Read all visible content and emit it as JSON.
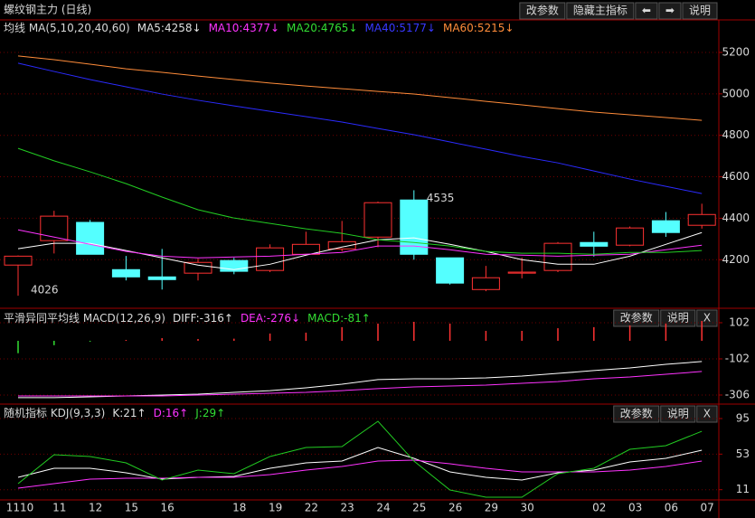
{
  "chart_data": [
    {
      "type": "candlestick",
      "title": "螺纹钢主力 (日线)",
      "indicator_title": "均线 MA(5,10,20,40,60)",
      "indicators": [
        {
          "label": "MA5:4258↓",
          "color": "#e0e0e0"
        },
        {
          "label": "MA10:4377↓",
          "color": "#ff33ff"
        },
        {
          "label": "MA20:4765↓",
          "color": "#33dd33"
        },
        {
          "label": "MA40:5177↓",
          "color": "#3838ff"
        },
        {
          "label": "MA60:5215↓",
          "color": "#ff8c3a"
        }
      ],
      "buttons": [
        "改参数",
        "隐藏主指标",
        "⬅",
        "➡",
        "说明"
      ],
      "up_color": "#ff3232",
      "down_color": "#54ffff",
      "open": [
        4174,
        4292,
        4380,
        4152,
        4117,
        4135,
        4196,
        4148,
        4226,
        4252,
        4309,
        4488,
        4209,
        4056,
        4135,
        4148,
        4283,
        4270,
        4388,
        4366
      ],
      "high": [
        4220,
        4436,
        4392,
        4218,
        4252,
        4205,
        4209,
        4274,
        4335,
        4387,
        4480,
        4535,
        4210,
        4170,
        4210,
        4285,
        4335,
        4360,
        4430,
        4470
      ],
      "low": [
        4026,
        4230,
        4226,
        4100,
        4056,
        4100,
        4130,
        4140,
        4220,
        4240,
        4260,
        4200,
        4080,
        4048,
        4110,
        4140,
        4215,
        4265,
        4310,
        4350
      ],
      "close": [
        4217,
        4410,
        4226,
        4117,
        4104,
        4187,
        4144,
        4257,
        4274,
        4287,
        4475,
        4226,
        4087,
        4113,
        4140,
        4279,
        4265,
        4353,
        4331,
        4418
      ],
      "series": [
        {
          "color": "#ffffff",
          "values": [
            4253,
            4279,
            4279,
            4244,
            4209,
            4174,
            4152,
            4178,
            4222,
            4261,
            4296,
            4305,
            4274,
            4240,
            4200,
            4178,
            4178,
            4217,
            4274,
            4331
          ]
        },
        {
          "color": "#ff33ff",
          "values": [
            4344,
            4309,
            4274,
            4240,
            4217,
            4209,
            4213,
            4217,
            4226,
            4235,
            4266,
            4266,
            4248,
            4226,
            4222,
            4217,
            4222,
            4226,
            4248,
            4270
          ]
        },
        {
          "color": "#22cc22",
          "values": [
            4737,
            4677,
            4624,
            4567,
            4502,
            4441,
            4401,
            4375,
            4349,
            4327,
            4296,
            4283,
            4266,
            4240,
            4231,
            4231,
            4226,
            4235,
            4235,
            4244
          ]
        },
        {
          "color": "#2b2bff",
          "values": [
            5148,
            5108,
            5069,
            5034,
            4999,
            4969,
            4942,
            4916,
            4890,
            4864,
            4833,
            4803,
            4768,
            4733,
            4698,
            4667,
            4628,
            4589,
            4554,
            4519
          ]
        },
        {
          "color": "#ff8c3a",
          "values": [
            5183,
            5165,
            5143,
            5121,
            5104,
            5086,
            5069,
            5052,
            5038,
            5025,
            5012,
            4999,
            4982,
            4964,
            4947,
            4929,
            4912,
            4899,
            4886,
            4872
          ]
        }
      ],
      "annotations": [
        {
          "value": 4535,
          "label": "4535"
        },
        {
          "value": 4026,
          "label": "4026"
        }
      ],
      "ylim": [
        3970,
        5322
      ],
      "yticks": [
        4200,
        4400,
        4600,
        4800,
        5000,
        5200
      ]
    },
    {
      "type": "macd",
      "title": "平滑异同平均线 MACD(12,26,9)",
      "indicators": [
        {
          "label": "DIFF:-316↑",
          "color": "#e0e0e0"
        },
        {
          "label": "DEA:-276↓",
          "color": "#ff33ff"
        },
        {
          "label": "MACD:-81↑",
          "color": "#33dd33"
        }
      ],
      "buttons": [
        "改参数",
        "说明",
        "X"
      ],
      "up_color": "#ff3232",
      "down_color": "#33dd33",
      "bars": [
        -70,
        -25,
        -5,
        5,
        15,
        10,
        12,
        41,
        46,
        77,
        97,
        107,
        97,
        56,
        56,
        71,
        77,
        87,
        97,
        112
      ],
      "series": [
        {
          "color": "#ffffff",
          "values": [
            -321,
            -321,
            -316,
            -311,
            -306,
            -301,
            -291,
            -281,
            -265,
            -245,
            -219,
            -214,
            -214,
            -209,
            -199,
            -184,
            -168,
            -153,
            -133,
            -117
          ]
        },
        {
          "color": "#ff33ff",
          "values": [
            -311,
            -311,
            -311,
            -311,
            -311,
            -306,
            -301,
            -296,
            -291,
            -281,
            -270,
            -260,
            -255,
            -250,
            -240,
            -230,
            -214,
            -204,
            -189,
            -173
          ]
        }
      ],
      "ylim": [
        -352,
        158
      ],
      "yticks": [
        102,
        -102,
        -306
      ]
    },
    {
      "type": "line",
      "title": "随机指标 KDJ(9,3,3)",
      "indicators": [
        {
          "label": "K:21↑",
          "color": "#e0e0e0"
        },
        {
          "label": "D:16↑",
          "color": "#ff33ff"
        },
        {
          "label": "J:29↑",
          "color": "#33dd33"
        }
      ],
      "buttons": [
        "改参数",
        "说明",
        "X"
      ],
      "categories": [
        "1110",
        "11",
        "12",
        "15",
        "16",
        null,
        "18",
        "19",
        "22",
        "23",
        "24",
        "25",
        "26",
        "29",
        "30",
        null,
        "02",
        "03",
        "06",
        "07"
      ],
      "series": [
        {
          "color": "#ffffff",
          "values": [
            25.6,
            36.3,
            36.3,
            31,
            23.5,
            25.6,
            26.7,
            36.3,
            42.7,
            44.8,
            60.8,
            48,
            32,
            25.6,
            22.4,
            31,
            34.2,
            43.8,
            48,
            57.6
          ]
        },
        {
          "color": "#ff33ff",
          "values": [
            12.8,
            18.1,
            23.5,
            24.5,
            24.5,
            25.6,
            25.6,
            28.8,
            34.2,
            38.4,
            44.8,
            45.9,
            41.6,
            36.3,
            32,
            32,
            32,
            34.2,
            38.4,
            44.8
          ]
        },
        {
          "color": "#22cc22",
          "values": [
            18.1,
            52.3,
            50.2,
            42.7,
            22.4,
            34.2,
            29.9,
            50.2,
            60.8,
            61.9,
            91.8,
            44.8,
            10.7,
            2.1,
            2.1,
            29.9,
            36.3,
            58.7,
            63,
            80
          ]
        }
      ],
      "ylim": [
        0,
        111
      ],
      "yticks": [
        95,
        53,
        11
      ]
    }
  ]
}
